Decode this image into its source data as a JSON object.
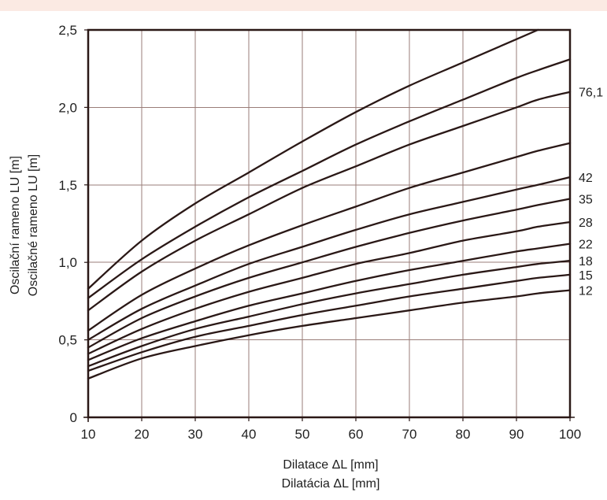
{
  "colors": {
    "top_band": "#fbeae3",
    "line": "#2a1816",
    "grid": "#9a7d78",
    "text": "#1f1f1f"
  },
  "chart_data": {
    "type": "line",
    "xlabel_lines": [
      "Dilatace ΔL [mm]",
      "Dilatácia ΔL [mm]"
    ],
    "ylabel_lines": [
      "Oscilační rameno LU [m]",
      "Oscilačné rameno LU [m]"
    ],
    "xlim": [
      10,
      100
    ],
    "ylim": [
      0,
      2.5
    ],
    "xticks": [
      10,
      20,
      30,
      40,
      50,
      60,
      70,
      80,
      90,
      100
    ],
    "yticks": [
      {
        "value": 0,
        "label": "0"
      },
      {
        "value": 0.5,
        "label": "0,5"
      },
      {
        "value": 1.0,
        "label": "1,0"
      },
      {
        "value": 1.5,
        "label": "1,5"
      },
      {
        "value": 2.0,
        "label": "2,0"
      },
      {
        "value": 2.5,
        "label": "2,5"
      }
    ],
    "grid": true,
    "x": [
      10,
      20,
      30,
      40,
      50,
      60,
      70,
      80,
      90,
      94,
      100
    ],
    "series": [
      {
        "name": "",
        "values": [
          0.83,
          1.14,
          1.38,
          1.58,
          1.78,
          1.97,
          2.14,
          2.29,
          2.44,
          2.5,
          null
        ]
      },
      {
        "name": "",
        "values": [
          0.77,
          1.02,
          1.23,
          1.42,
          1.59,
          1.76,
          1.91,
          2.05,
          2.19,
          2.24,
          2.31
        ]
      },
      {
        "name": "76,1",
        "values": [
          0.69,
          0.94,
          1.14,
          1.31,
          1.48,
          1.62,
          1.76,
          1.88,
          2.0,
          2.05,
          2.1
        ]
      },
      {
        "name": "",
        "values": [
          0.56,
          0.79,
          0.96,
          1.11,
          1.24,
          1.36,
          1.48,
          1.58,
          1.68,
          1.72,
          1.77
        ]
      },
      {
        "name": "42",
        "values": [
          0.5,
          0.7,
          0.85,
          0.99,
          1.1,
          1.21,
          1.31,
          1.39,
          1.47,
          1.5,
          1.55
        ]
      },
      {
        "name": "35",
        "values": [
          0.45,
          0.64,
          0.78,
          0.9,
          1.0,
          1.1,
          1.19,
          1.27,
          1.34,
          1.37,
          1.41
        ]
      },
      {
        "name": "28",
        "values": [
          0.41,
          0.57,
          0.7,
          0.81,
          0.9,
          0.99,
          1.06,
          1.14,
          1.2,
          1.23,
          1.26
        ]
      },
      {
        "name": "22",
        "values": [
          0.37,
          0.51,
          0.62,
          0.72,
          0.8,
          0.88,
          0.95,
          1.01,
          1.07,
          1.09,
          1.12
        ]
      },
      {
        "name": "18",
        "values": [
          0.33,
          0.46,
          0.57,
          0.65,
          0.73,
          0.8,
          0.86,
          0.92,
          0.97,
          0.99,
          1.01
        ]
      },
      {
        "name": "15",
        "values": [
          0.3,
          0.42,
          0.52,
          0.59,
          0.66,
          0.72,
          0.78,
          0.83,
          0.88,
          0.9,
          0.92
        ]
      },
      {
        "name": "12",
        "values": [
          0.25,
          0.38,
          0.46,
          0.53,
          0.59,
          0.64,
          0.69,
          0.74,
          0.78,
          0.8,
          0.82
        ]
      }
    ]
  }
}
